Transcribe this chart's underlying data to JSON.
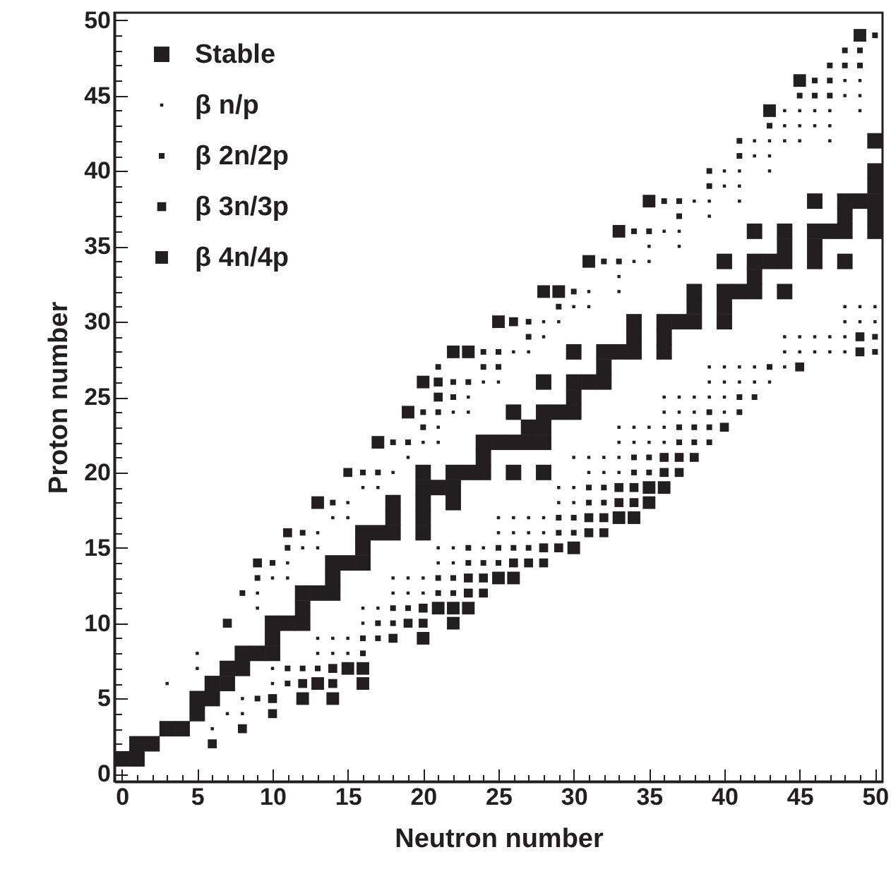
{
  "chart_data": {
    "type": "scatter",
    "xlabel": "Neutron number",
    "ylabel": "Proton number",
    "xlim": [
      -0.5,
      50.5
    ],
    "ylim": [
      -0.5,
      50.5
    ],
    "xticks": [
      0,
      {
        "value": 1,
        "label": null
      },
      {
        "value": 2,
        "label": null
      },
      {
        "value": 3,
        "label": null
      },
      {
        "value": 4,
        "label": null
      },
      5,
      {
        "value": 6,
        "label": null
      },
      {
        "value": 7,
        "label": null
      },
      {
        "value": 8,
        "label": null
      },
      {
        "value": 9,
        "label": null
      },
      10,
      {
        "value": 11,
        "label": null
      },
      {
        "value": 12,
        "label": null
      },
      {
        "value": 13,
        "label": null
      },
      {
        "value": 14,
        "label": null
      },
      15,
      {
        "value": 16,
        "label": null
      },
      {
        "value": 17,
        "label": null
      },
      {
        "value": 18,
        "label": null
      },
      {
        "value": 19,
        "label": null
      },
      20,
      {
        "value": 21,
        "label": null
      },
      {
        "value": 22,
        "label": null
      },
      {
        "value": 23,
        "label": null
      },
      {
        "value": 24,
        "label": null
      },
      25,
      {
        "value": 26,
        "label": null
      },
      {
        "value": 27,
        "label": null
      },
      {
        "value": 28,
        "label": null
      },
      {
        "value": 29,
        "label": null
      },
      30,
      {
        "value": 31,
        "label": null
      },
      {
        "value": 32,
        "label": null
      },
      {
        "value": 33,
        "label": null
      },
      {
        "value": 34,
        "label": null
      },
      35,
      {
        "value": 36,
        "label": null
      },
      {
        "value": 37,
        "label": null
      },
      {
        "value": 38,
        "label": null
      },
      {
        "value": 39,
        "label": null
      },
      40,
      {
        "value": 41,
        "label": null
      },
      {
        "value": 42,
        "label": null
      },
      {
        "value": 43,
        "label": null
      },
      {
        "value": 44,
        "label": null
      },
      45,
      {
        "value": 46,
        "label": null
      },
      {
        "value": 47,
        "label": null
      },
      {
        "value": 48,
        "label": null
      },
      {
        "value": 49,
        "label": null
      },
      50
    ],
    "yticks": [
      0,
      {
        "value": 1,
        "label": null
      },
      {
        "value": 2,
        "label": null
      },
      {
        "value": 3,
        "label": null
      },
      {
        "value": 4,
        "label": null
      },
      5,
      {
        "value": 6,
        "label": null
      },
      {
        "value": 7,
        "label": null
      },
      {
        "value": 8,
        "label": null
      },
      {
        "value": 9,
        "label": null
      },
      10,
      {
        "value": 11,
        "label": null
      },
      {
        "value": 12,
        "label": null
      },
      {
        "value": 13,
        "label": null
      },
      {
        "value": 14,
        "label": null
      },
      15,
      {
        "value": 16,
        "label": null
      },
      {
        "value": 17,
        "label": null
      },
      {
        "value": 18,
        "label": null
      },
      {
        "value": 19,
        "label": null
      },
      20,
      {
        "value": 21,
        "label": null
      },
      {
        "value": 22,
        "label": null
      },
      {
        "value": 23,
        "label": null
      },
      {
        "value": 24,
        "label": null
      },
      25,
      {
        "value": 26,
        "label": null
      },
      {
        "value": 27,
        "label": null
      },
      {
        "value": 28,
        "label": null
      },
      {
        "value": 29,
        "label": null
      },
      30,
      {
        "value": 31,
        "label": null
      },
      {
        "value": 32,
        "label": null
      },
      {
        "value": 33,
        "label": null
      },
      {
        "value": 34,
        "label": null
      },
      35,
      {
        "value": 36,
        "label": null
      },
      {
        "value": 37,
        "label": null
      },
      {
        "value": 38,
        "label": null
      },
      {
        "value": 39,
        "label": null
      },
      40,
      {
        "value": 41,
        "label": null
      },
      {
        "value": 42,
        "label": null
      },
      {
        "value": 43,
        "label": null
      },
      {
        "value": 44,
        "label": null
      },
      45,
      {
        "value": 46,
        "label": null
      },
      {
        "value": 47,
        "label": null
      },
      {
        "value": 48,
        "label": null
      },
      {
        "value": 49,
        "label": null
      },
      50
    ],
    "grid": false,
    "legend": "top left",
    "marker": "square",
    "series": [
      {
        "name": "Stable",
        "color": "#231f20",
        "x": [
          0,
          1,
          1,
          2,
          3,
          4,
          5,
          5,
          6,
          6,
          7,
          7,
          8,
          8,
          9,
          10,
          10,
          10,
          11,
          12,
          12,
          12,
          13,
          14,
          14,
          14,
          15,
          16,
          16,
          16,
          17,
          18,
          20,
          18,
          20,
          18,
          20,
          22,
          20,
          21,
          22,
          20,
          22,
          23,
          24,
          26,
          28,
          24,
          24,
          25,
          26,
          27,
          28,
          27,
          28,
          26,
          28,
          29,
          30,
          30,
          28,
          30,
          31,
          32,
          32,
          30,
          32,
          33,
          34,
          36,
          34,
          36,
          34,
          36,
          37,
          38,
          40,
          38,
          40,
          38,
          40,
          41,
          42,
          44,
          42,
          40,
          42,
          43,
          44,
          46,
          48,
          44,
          46,
          42,
          44,
          46,
          47,
          48,
          50,
          48,
          50,
          46,
          48,
          49,
          50,
          50,
          50,
          50
        ],
        "values": [
          1,
          1,
          2,
          2,
          3,
          3,
          4,
          5,
          5,
          6,
          6,
          7,
          7,
          8,
          8,
          8,
          9,
          10,
          10,
          10,
          11,
          12,
          12,
          12,
          13,
          14,
          14,
          14,
          15,
          16,
          16,
          16,
          16,
          17,
          17,
          18,
          18,
          18,
          19,
          19,
          19,
          20,
          20,
          20,
          20,
          20,
          20,
          21,
          22,
          22,
          22,
          22,
          22,
          23,
          23,
          24,
          24,
          24,
          24,
          25,
          26,
          26,
          26,
          26,
          27,
          28,
          28,
          28,
          28,
          28,
          29,
          29,
          30,
          30,
          30,
          30,
          30,
          31,
          31,
          32,
          32,
          32,
          32,
          32,
          33,
          34,
          34,
          34,
          34,
          34,
          34,
          35,
          35,
          36,
          36,
          36,
          36,
          36,
          36,
          37,
          37,
          38,
          38,
          38,
          38,
          39,
          40,
          42
        ]
      },
      {
        "name": "β n/p",
        "color": "#231f20",
        "x": [
          3,
          5,
          5,
          6,
          7,
          8,
          8,
          10,
          10,
          13,
          14,
          15,
          13,
          14,
          15,
          16,
          16,
          17,
          18,
          19,
          20,
          18,
          19,
          20,
          21,
          22,
          21,
          22,
          24,
          25,
          26,
          27,
          28,
          25,
          26,
          27,
          28,
          29,
          30,
          29,
          30,
          31,
          32,
          33,
          30,
          31,
          32,
          33,
          33,
          34,
          35,
          36,
          33,
          34,
          35,
          36,
          36,
          37,
          38,
          40,
          36,
          37,
          38,
          39,
          40,
          39,
          40,
          41,
          42,
          43,
          39,
          40,
          41,
          42,
          44,
          44,
          45,
          46,
          47,
          48,
          44,
          45,
          46,
          47,
          48,
          48,
          49,
          50,
          48,
          49,
          50,
          9,
          9,
          11,
          10,
          11,
          13,
          12,
          13,
          15,
          14,
          15,
          18,
          16,
          17,
          20,
          21,
          19,
          22,
          23,
          21,
          23,
          24,
          25,
          26,
          27,
          28,
          28,
          29,
          30,
          31,
          31,
          33,
          33,
          34,
          35,
          35,
          37,
          36,
          37,
          39,
          38,
          39,
          41,
          40,
          41,
          40,
          41,
          43,
          42,
          43,
          42,
          43,
          44,
          45,
          47,
          44,
          45,
          46,
          47,
          44,
          45,
          46,
          47,
          49,
          48,
          49,
          48,
          49
        ],
        "values": [
          6,
          8,
          7,
          3,
          4,
          4,
          5,
          6,
          7,
          8,
          8,
          8,
          9,
          9,
          9,
          10,
          11,
          11,
          12,
          12,
          12,
          13,
          13,
          13,
          14,
          14,
          15,
          15,
          15,
          16,
          16,
          16,
          16,
          17,
          17,
          17,
          17,
          18,
          18,
          19,
          19,
          20,
          20,
          20,
          21,
          21,
          21,
          21,
          22,
          22,
          22,
          22,
          23,
          23,
          23,
          23,
          24,
          24,
          24,
          24,
          25,
          25,
          25,
          25,
          25,
          26,
          26,
          26,
          26,
          26,
          27,
          27,
          27,
          27,
          27,
          28,
          28,
          28,
          28,
          28,
          29,
          29,
          29,
          29,
          29,
          30,
          30,
          30,
          31,
          31,
          31,
          12,
          11,
          14,
          13,
          13,
          16,
          15,
          15,
          18,
          17,
          17,
          20,
          19,
          19,
          22,
          22,
          21,
          24,
          24,
          23,
          25,
          26,
          26,
          28,
          28,
          29,
          30,
          30,
          31,
          31,
          32,
          32,
          33,
          34,
          34,
          35,
          35,
          36,
          36,
          37,
          38,
          38,
          38,
          39,
          39,
          40,
          40,
          40,
          41,
          41,
          42,
          42,
          42,
          42,
          42,
          43,
          43,
          43,
          43,
          44,
          44,
          44,
          44,
          44,
          45,
          45,
          46,
          46
        ]
      },
      {
        "name": "β 2n/2p",
        "color": "#231f20",
        "x": [
          9,
          11,
          11,
          12,
          13,
          16,
          16,
          17,
          17,
          18,
          18,
          19,
          21,
          22,
          21,
          22,
          23,
          24,
          23,
          25,
          25,
          26,
          27,
          29,
          30,
          29,
          30,
          31,
          32,
          31,
          32,
          34,
          35,
          34,
          35,
          37,
          38,
          39,
          37,
          38,
          39,
          39,
          41,
          41,
          42,
          43,
          50,
          50,
          8,
          10,
          9,
          12,
          11,
          14,
          16,
          17,
          18,
          19,
          20,
          21,
          20,
          22,
          22,
          23,
          21,
          24,
          25,
          24,
          25,
          27,
          27,
          29,
          30,
          32,
          33,
          34,
          35,
          37,
          36,
          37,
          39,
          39,
          41,
          41,
          43,
          45,
          46,
          47,
          46,
          47,
          47,
          48,
          49,
          48,
          49,
          50
        ],
        "values": [
          5,
          7,
          6,
          7,
          7,
          8,
          9,
          9,
          10,
          10,
          11,
          11,
          12,
          12,
          13,
          13,
          14,
          14,
          15,
          14,
          15,
          15,
          15,
          16,
          16,
          17,
          17,
          18,
          18,
          19,
          19,
          20,
          20,
          21,
          21,
          22,
          22,
          22,
          23,
          23,
          23,
          24,
          24,
          25,
          25,
          27,
          28,
          29,
          12,
          14,
          13,
          16,
          15,
          18,
          20,
          20,
          22,
          22,
          24,
          24,
          23,
          25,
          26,
          26,
          27,
          27,
          27,
          28,
          28,
          30,
          29,
          31,
          32,
          34,
          34,
          36,
          36,
          37,
          38,
          38,
          39,
          40,
          41,
          42,
          43,
          45,
          45,
          45,
          46,
          46,
          47,
          47,
          47,
          48,
          48,
          49
        ]
      },
      {
        "name": "β 3n/3p",
        "color": "#231f20",
        "x": [
          6,
          8,
          10,
          10,
          12,
          14,
          14,
          18,
          19,
          20,
          20,
          23,
          24,
          23,
          24,
          26,
          27,
          28,
          28,
          29,
          31,
          32,
          31,
          32,
          33,
          34,
          33,
          34,
          36,
          37,
          36,
          37,
          38,
          40,
          45,
          49,
          49,
          7,
          9,
          11,
          15,
          21,
          21,
          26
        ],
        "values": [
          2,
          3,
          5,
          4,
          6,
          7,
          6,
          9,
          10,
          10,
          11,
          12,
          12,
          13,
          13,
          14,
          14,
          14,
          15,
          15,
          16,
          16,
          17,
          17,
          18,
          18,
          19,
          19,
          20,
          20,
          21,
          21,
          21,
          23,
          27,
          28,
          29,
          10,
          14,
          16,
          20,
          25,
          26,
          30
        ]
      },
      {
        "name": "β 4n/4p",
        "color": "#231f20",
        "x": [
          12,
          13,
          14,
          15,
          16,
          16,
          20,
          22,
          21,
          22,
          23,
          25,
          26,
          30,
          33,
          34,
          35,
          35,
          36,
          13,
          17,
          19,
          20,
          22,
          23,
          25,
          28,
          29,
          31,
          33,
          35,
          43,
          45,
          49
        ],
        "values": [
          5,
          6,
          5,
          7,
          6,
          7,
          9,
          10,
          11,
          11,
          11,
          13,
          13,
          15,
          17,
          17,
          18,
          19,
          19,
          18,
          22,
          24,
          26,
          28,
          28,
          30,
          32,
          32,
          34,
          36,
          38,
          44,
          46,
          49
        ]
      }
    ]
  }
}
